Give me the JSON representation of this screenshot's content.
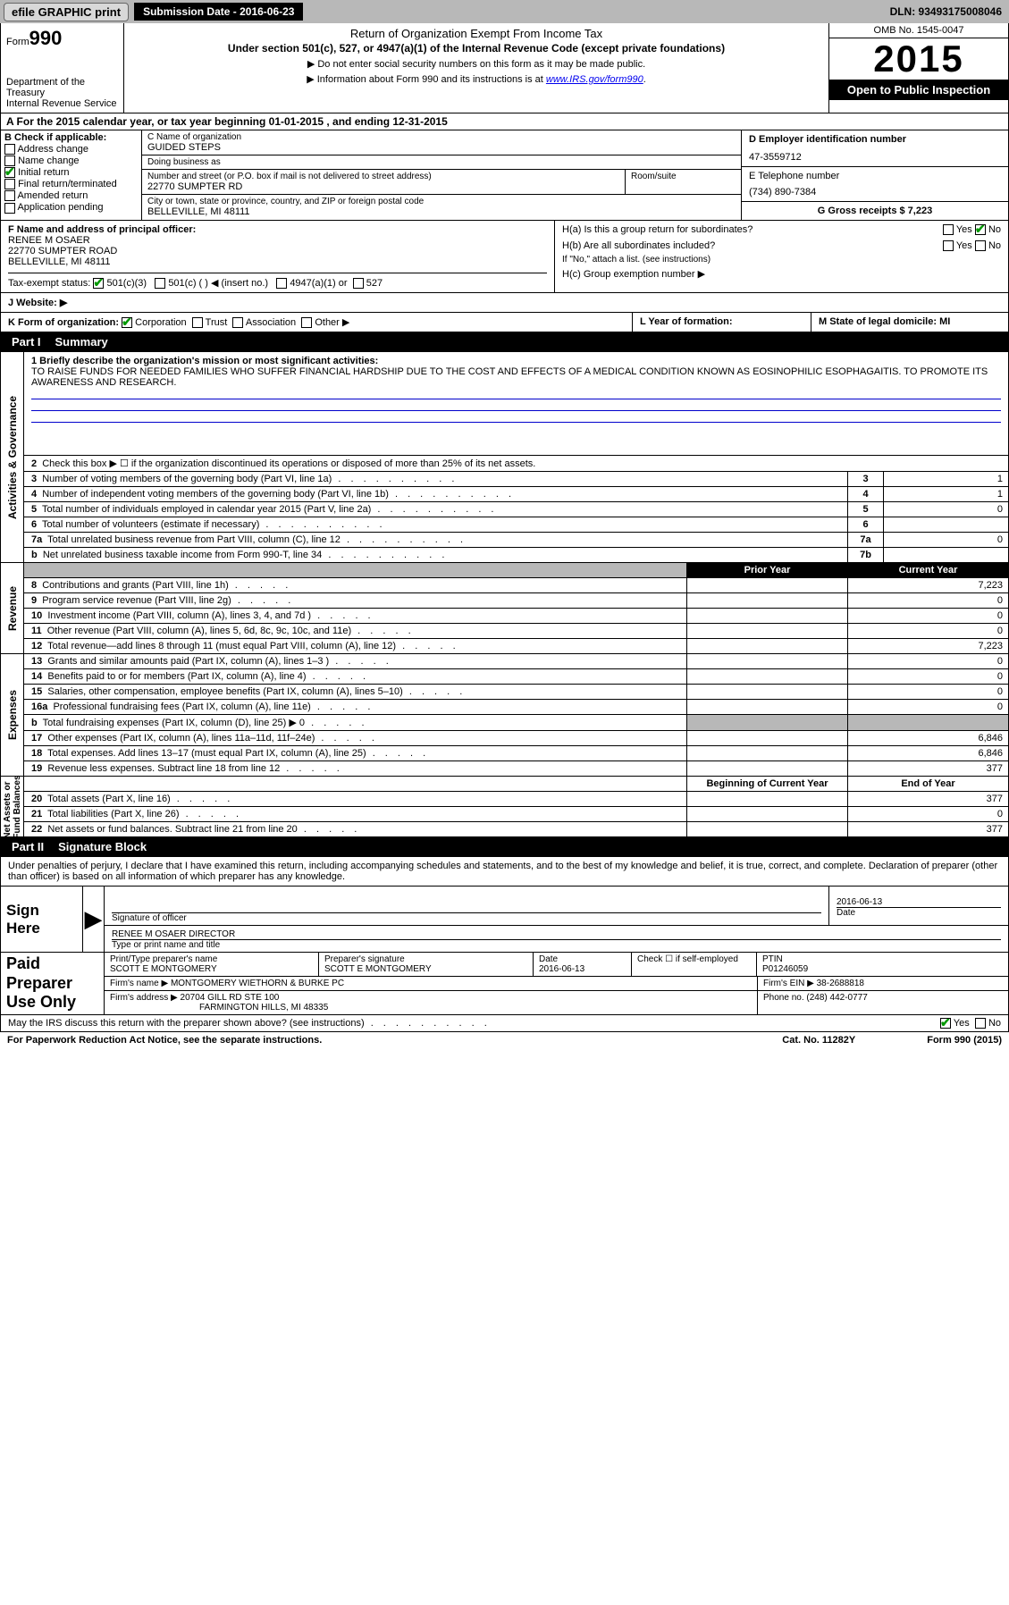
{
  "topbar": {
    "efile": "efile GRAPHIC print",
    "submission_label": "Submission Date - 2016-06-23",
    "dln": "DLN: 93493175008046"
  },
  "header": {
    "form_no_label": "Form",
    "form_no": "990",
    "dept": "Department of the Treasury\nInternal Revenue Service",
    "title": "Return of Organization Exempt From Income Tax",
    "subtitle": "Under section 501(c), 527, or 4947(a)(1) of the Internal Revenue Code (except private foundations)",
    "note1": "▶ Do not enter social security numbers on this form as it may be made public.",
    "note2_pre": "▶ Information about Form 990 and its instructions is at ",
    "note2_link": "www.IRS.gov/form990",
    "omb": "OMB No. 1545-0047",
    "year": "2015",
    "open": "Open to Public Inspection"
  },
  "rowA": "A  For the 2015 calendar year, or tax year beginning 01-01-2015   , and ending 12-31-2015",
  "boxB": {
    "title": "B Check if applicable:",
    "opts": [
      "Address change",
      "Name change",
      "Initial return",
      "Final return/terminated",
      "Amended return",
      "Application pending"
    ],
    "checked_idx": 2
  },
  "boxC": {
    "name_lbl": "C Name of organization",
    "name": "GUIDED STEPS",
    "dba_lbl": "Doing business as",
    "dba": "",
    "addr_lbl": "Number and street (or P.O. box if mail is not delivered to street address)",
    "room_lbl": "Room/suite",
    "addr": "22770 SUMPTER RD",
    "city_lbl": "City or town, state or province, country, and ZIP or foreign postal code",
    "city": "BELLEVILLE, MI  48111"
  },
  "boxD": {
    "lbl": "D Employer identification number",
    "val": "47-3559712"
  },
  "boxE": {
    "lbl": "E Telephone number",
    "val": "(734) 890-7384"
  },
  "boxG": {
    "lbl": "G Gross receipts $ 7,223"
  },
  "boxF": {
    "lbl": "F  Name and address of principal officer:",
    "l1": "RENEE M OSAER",
    "l2": "22770 SUMPTER ROAD",
    "l3": "BELLEVILLE, MI  48111"
  },
  "boxH": {
    "a": "H(a)  Is this a group return for subordinates?",
    "b": "H(b)  Are all subordinates included?",
    "b_note": "If \"No,\" attach a list. (see instructions)",
    "c": "H(c)  Group exemption number ▶",
    "yes": "Yes",
    "no": "No"
  },
  "taxexempt": {
    "lbl": "Tax-exempt status:",
    "opt1": "501(c)(3)",
    "opt2": "501(c) (  ) ◀ (insert no.)",
    "opt3": "4947(a)(1) or",
    "opt4": "527"
  },
  "rowJ": {
    "lbl": "J   Website: ▶"
  },
  "rowK": {
    "lbl": "K Form of organization:",
    "opts": [
      "Corporation",
      "Trust",
      "Association",
      "Other ▶"
    ]
  },
  "rowL": "L  Year of formation:",
  "rowM": "M State of legal domicile: MI",
  "partI": {
    "label": "Part I",
    "title": "Summary"
  },
  "mission": {
    "q": "1  Briefly describe the organization's mission or most significant activities:",
    "text": "TO RAISE FUNDS FOR NEEDED FAMILIES WHO SUFFER FINANCIAL HARDSHIP DUE TO THE COST AND EFFECTS OF A MEDICAL CONDITION KNOWN AS EOSINOPHILIC ESOPHAGAITIS. TO PROMOTE ITS AWARENESS AND RESEARCH."
  },
  "gov_lines": [
    {
      "n": "2",
      "t": "Check this box ▶ ☐  if the organization discontinued its operations or disposed of more than 25% of its net assets.",
      "box": "",
      "val": ""
    },
    {
      "n": "3",
      "t": "Number of voting members of the governing body (Part VI, line 1a)",
      "box": "3",
      "val": "1"
    },
    {
      "n": "4",
      "t": "Number of independent voting members of the governing body (Part VI, line 1b)",
      "box": "4",
      "val": "1"
    },
    {
      "n": "5",
      "t": "Total number of individuals employed in calendar year 2015 (Part V, line 2a)",
      "box": "5",
      "val": "0"
    },
    {
      "n": "6",
      "t": "Total number of volunteers (estimate if necessary)",
      "box": "6",
      "val": ""
    },
    {
      "n": "7a",
      "t": "Total unrelated business revenue from Part VIII, column (C), line 12",
      "box": "7a",
      "val": "0"
    },
    {
      "n": "b",
      "t": "Net unrelated business taxable income from Form 990-T, line 34",
      "box": "7b",
      "val": ""
    }
  ],
  "col_hdr": {
    "prior": "Prior Year",
    "curr": "Current Year"
  },
  "rev_lines": [
    {
      "n": "8",
      "t": "Contributions and grants (Part VIII, line 1h)",
      "p": "",
      "c": "7,223"
    },
    {
      "n": "9",
      "t": "Program service revenue (Part VIII, line 2g)",
      "p": "",
      "c": "0"
    },
    {
      "n": "10",
      "t": "Investment income (Part VIII, column (A), lines 3, 4, and 7d )",
      "p": "",
      "c": "0"
    },
    {
      "n": "11",
      "t": "Other revenue (Part VIII, column (A), lines 5, 6d, 8c, 9c, 10c, and 11e)",
      "p": "",
      "c": "0"
    },
    {
      "n": "12",
      "t": "Total revenue—add lines 8 through 11 (must equal Part VIII, column (A), line 12)",
      "p": "",
      "c": "7,223"
    }
  ],
  "exp_lines": [
    {
      "n": "13",
      "t": "Grants and similar amounts paid (Part IX, column (A), lines 1–3 )",
      "p": "",
      "c": "0"
    },
    {
      "n": "14",
      "t": "Benefits paid to or for members (Part IX, column (A), line 4)",
      "p": "",
      "c": "0"
    },
    {
      "n": "15",
      "t": "Salaries, other compensation, employee benefits (Part IX, column (A), lines 5–10)",
      "p": "",
      "c": "0"
    },
    {
      "n": "16a",
      "t": "Professional fundraising fees (Part IX, column (A), line 11e)",
      "p": "",
      "c": "0"
    },
    {
      "n": "b",
      "t": "Total fundraising expenses (Part IX, column (D), line 25) ▶ 0",
      "p": "shade",
      "c": "shade"
    },
    {
      "n": "17",
      "t": "Other expenses (Part IX, column (A), lines 11a–11d, 11f–24e)",
      "p": "",
      "c": "6,846"
    },
    {
      "n": "18",
      "t": "Total expenses. Add lines 13–17 (must equal Part IX, column (A), line 25)",
      "p": "",
      "c": "6,846"
    },
    {
      "n": "19",
      "t": "Revenue less expenses. Subtract line 18 from line 12",
      "p": "",
      "c": "377"
    }
  ],
  "na_hdr": {
    "prior": "Beginning of Current Year",
    "curr": "End of Year"
  },
  "na_lines": [
    {
      "n": "20",
      "t": "Total assets (Part X, line 16)",
      "p": "",
      "c": "377"
    },
    {
      "n": "21",
      "t": "Total liabilities (Part X, line 26)",
      "p": "",
      "c": "0"
    },
    {
      "n": "22",
      "t": "Net assets or fund balances. Subtract line 21 from line 20",
      "p": "",
      "c": "377"
    }
  ],
  "partII": {
    "label": "Part II",
    "title": "Signature Block"
  },
  "decl": "Under penalties of perjury, I declare that I have examined this return, including accompanying schedules and statements, and to the best of my knowledge and belief, it is true, correct, and complete. Declaration of preparer (other than officer) is based on all information of which preparer has any knowledge.",
  "sign": {
    "title": "Sign Here",
    "sig_lbl": "Signature of officer",
    "date_lbl": "Date",
    "date": "2016-06-13",
    "name": "RENEE M OSAER  DIRECTOR",
    "name_lbl": "Type or print name and title"
  },
  "prep": {
    "title": "Paid Preparer Use Only",
    "name_lbl": "Print/Type preparer's name",
    "name": "SCOTT E MONTGOMERY",
    "sig_lbl": "Preparer's signature",
    "sig": "SCOTT E MONTGOMERY",
    "date_lbl": "Date",
    "date": "2016-06-13",
    "self_lbl": "Check ☐ if self-employed",
    "ptin_lbl": "PTIN",
    "ptin": "P01246059",
    "firm_lbl": "Firm's name    ▶",
    "firm": "MONTGOMERY WIETHORN & BURKE PC",
    "ein_lbl": "Firm's EIN ▶",
    "ein": "38-2688818",
    "addr_lbl": "Firm's address ▶",
    "addr1": "20704 GILL RD STE 100",
    "addr2": "FARMINGTON HILLS, MI  48335",
    "phone_lbl": "Phone no.",
    "phone": "(248) 442-0777"
  },
  "footer": {
    "discuss": "May the IRS discuss this return with the preparer shown above? (see instructions)",
    "yes": "Yes",
    "no": "No",
    "pra": "For Paperwork Reduction Act Notice, see the separate instructions.",
    "cat": "Cat. No. 11282Y",
    "form": "Form 990 (2015)"
  },
  "vert_labels": {
    "gov": "Activities & Governance",
    "rev": "Revenue",
    "exp": "Expenses",
    "na": "Net Assets or\nFund Balances"
  }
}
